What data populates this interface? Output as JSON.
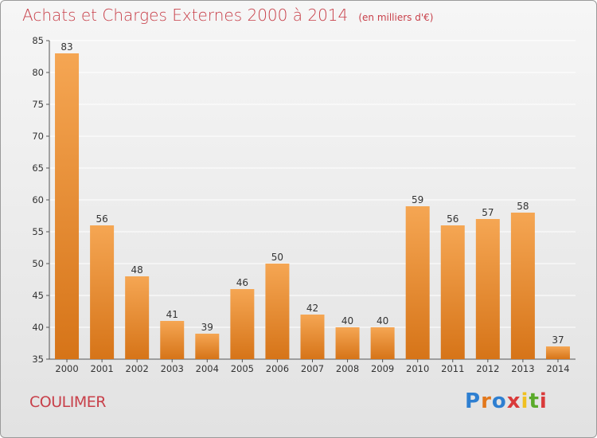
{
  "header": {
    "title": "Achats et Charges Externes 2000 à 2014",
    "unit": "(en milliers d'€)"
  },
  "footer": {
    "place": "COULIMER",
    "brand": "Proxiti"
  },
  "colors": {
    "bar_top": "#f5a653",
    "bar_bottom": "#d67418",
    "title": "#c8404a",
    "grid": "#ffffff"
  },
  "chart_data": {
    "type": "bar",
    "categories": [
      "2000",
      "2001",
      "2002",
      "2003",
      "2004",
      "2005",
      "2006",
      "2007",
      "2008",
      "2009",
      "2010",
      "2011",
      "2012",
      "2013",
      "2014"
    ],
    "values": [
      83,
      56,
      48,
      41,
      39,
      46,
      50,
      42,
      40,
      40,
      59,
      56,
      57,
      58,
      37
    ],
    "ylim": [
      35,
      85
    ],
    "yticks": [
      35,
      40,
      45,
      50,
      55,
      60,
      65,
      70,
      75,
      80,
      85
    ],
    "grid": true,
    "data_labels": true
  }
}
